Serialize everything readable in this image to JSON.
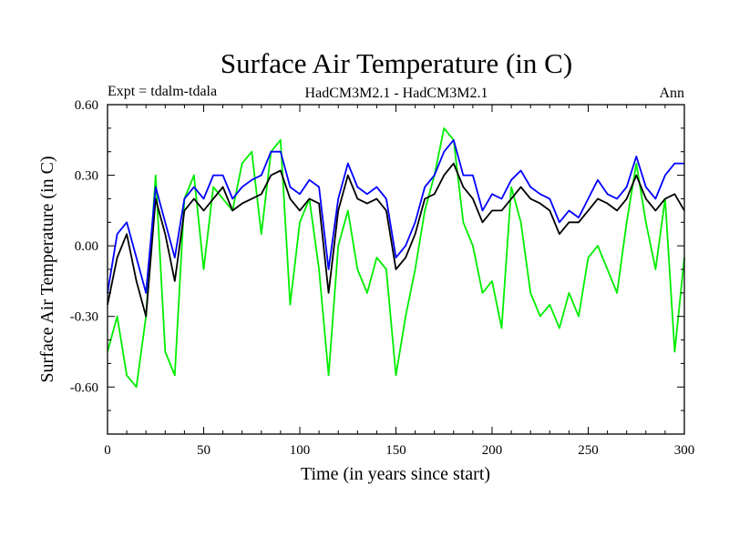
{
  "chart_data": {
    "type": "line",
    "title": "Surface Air Temperature (in C)",
    "subtitle_left": "Expt = tdalm-tdala",
    "subtitle_center": "HadCM3M2.1 - HadCM3M2.1",
    "subtitle_right": "Ann",
    "xlabel": "Time (in years since start)",
    "ylabel": "Surface Air Temperature (in C)",
    "xlim": [
      0,
      300
    ],
    "ylim": [
      -0.8,
      0.6
    ],
    "x_ticks": [
      0,
      50,
      100,
      150,
      200,
      250,
      300
    ],
    "x_tick_labels": [
      "0",
      "50",
      "100",
      "150",
      "200",
      "250",
      "300"
    ],
    "y_ticks": [
      0.6,
      0.3,
      0.0,
      -0.3,
      -0.6
    ],
    "y_tick_labels": [
      "0.60",
      "0.30",
      "0.00",
      "-0.30",
      "-0.60"
    ],
    "grid": false,
    "x_step": 5,
    "series": [
      {
        "name": "black",
        "color": "#000000",
        "values": [
          -0.25,
          -0.05,
          0.05,
          -0.15,
          -0.3,
          0.2,
          0.05,
          -0.15,
          0.15,
          0.2,
          0.15,
          0.2,
          0.25,
          0.15,
          0.18,
          0.2,
          0.22,
          0.3,
          0.32,
          0.2,
          0.15,
          0.2,
          0.18,
          -0.2,
          0.15,
          0.3,
          0.2,
          0.18,
          0.2,
          0.15,
          -0.1,
          -0.05,
          0.05,
          0.2,
          0.22,
          0.3,
          0.35,
          0.25,
          0.2,
          0.1,
          0.15,
          0.15,
          0.2,
          0.25,
          0.2,
          0.18,
          0.15,
          0.05,
          0.1,
          0.1,
          0.15,
          0.2,
          0.18,
          0.15,
          0.2,
          0.3,
          0.2,
          0.15,
          0.2,
          0.22,
          0.15
        ]
      },
      {
        "name": "blue",
        "color": "#0000ff",
        "values": [
          -0.2,
          0.05,
          0.1,
          -0.05,
          -0.2,
          0.25,
          0.1,
          -0.05,
          0.2,
          0.25,
          0.2,
          0.3,
          0.3,
          0.2,
          0.25,
          0.28,
          0.3,
          0.4,
          0.4,
          0.25,
          0.22,
          0.28,
          0.25,
          -0.1,
          0.2,
          0.35,
          0.25,
          0.22,
          0.25,
          0.2,
          -0.05,
          0.0,
          0.1,
          0.25,
          0.3,
          0.4,
          0.45,
          0.3,
          0.3,
          0.15,
          0.22,
          0.2,
          0.28,
          0.32,
          0.25,
          0.22,
          0.2,
          0.1,
          0.15,
          0.12,
          0.2,
          0.28,
          0.22,
          0.2,
          0.25,
          0.38,
          0.25,
          0.2,
          0.3,
          0.35,
          0.35
        ]
      },
      {
        "name": "green",
        "color": "#00ee00",
        "values": [
          -0.45,
          -0.3,
          -0.55,
          -0.6,
          -0.3,
          0.3,
          -0.45,
          -0.55,
          0.2,
          0.3,
          -0.1,
          0.25,
          0.2,
          0.15,
          0.35,
          0.4,
          0.05,
          0.4,
          0.45,
          -0.25,
          0.1,
          0.2,
          -0.1,
          -0.55,
          0.0,
          0.15,
          -0.1,
          -0.2,
          -0.05,
          -0.1,
          -0.55,
          -0.3,
          -0.1,
          0.15,
          0.3,
          0.5,
          0.45,
          0.1,
          0.0,
          -0.2,
          -0.15,
          -0.35,
          0.25,
          0.1,
          -0.2,
          -0.3,
          -0.25,
          -0.35,
          -0.2,
          -0.3,
          -0.05,
          0.0,
          -0.1,
          -0.2,
          0.1,
          0.35,
          0.1,
          -0.1,
          0.2,
          -0.45,
          -0.05
        ]
      }
    ]
  }
}
